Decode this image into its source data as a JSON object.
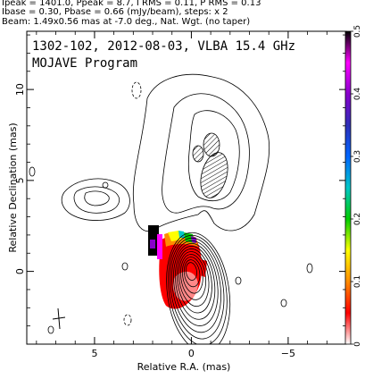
{
  "header": {
    "line1": "Ipeak = 1401.0, Ppeak = 8.7, I RMS = 0.11, P RMS = 0.13",
    "line2": "Ibase = 0.30, Pbase = 0.66 (mJy/beam), steps: x 2",
    "line3": "Beam: 1.49x0.56 mas at -7.0 deg., Nat. Wgt. (no taper)"
  },
  "chart_data": {
    "type": "heatmap",
    "title": "1302-102, 2012-08-03, VLBA 15.4 GHz",
    "subtitle": "MOJAVE Program",
    "xlabel": "Relative R.A. (mas)",
    "ylabel": "Relative Declination (mas)",
    "xlim": [
      8.5,
      -8.0
    ],
    "ylim": [
      -4.0,
      13.2
    ],
    "x_ticks": [
      5,
      0,
      -5
    ],
    "y_ticks": [
      0,
      5,
      10
    ],
    "x_tick_labels": [
      "5",
      "0",
      "−5"
    ],
    "y_tick_labels": [
      "0",
      "5",
      "10"
    ],
    "colorbar": {
      "range": [
        0,
        0.5
      ],
      "ticks": [
        0,
        0.1,
        0.2,
        0.3,
        0.4,
        0.5
      ],
      "tick_labels": [
        "0",
        "0.1",
        "0.2",
        "0.3",
        "0.4",
        "0.5"
      ],
      "colors": [
        "#ffffff",
        "#ff0000",
        "#ff8c00",
        "#ffff00",
        "#00cc00",
        "#00c8c8",
        "#0066ff",
        "#2e2eb8",
        "#8800cc",
        "#ff00ff",
        "#000000"
      ]
    },
    "core": {
      "x": 0.0,
      "y": 0.0
    },
    "beam": {
      "major": 1.49,
      "minor": 0.56,
      "pa_deg": -7.0
    }
  }
}
